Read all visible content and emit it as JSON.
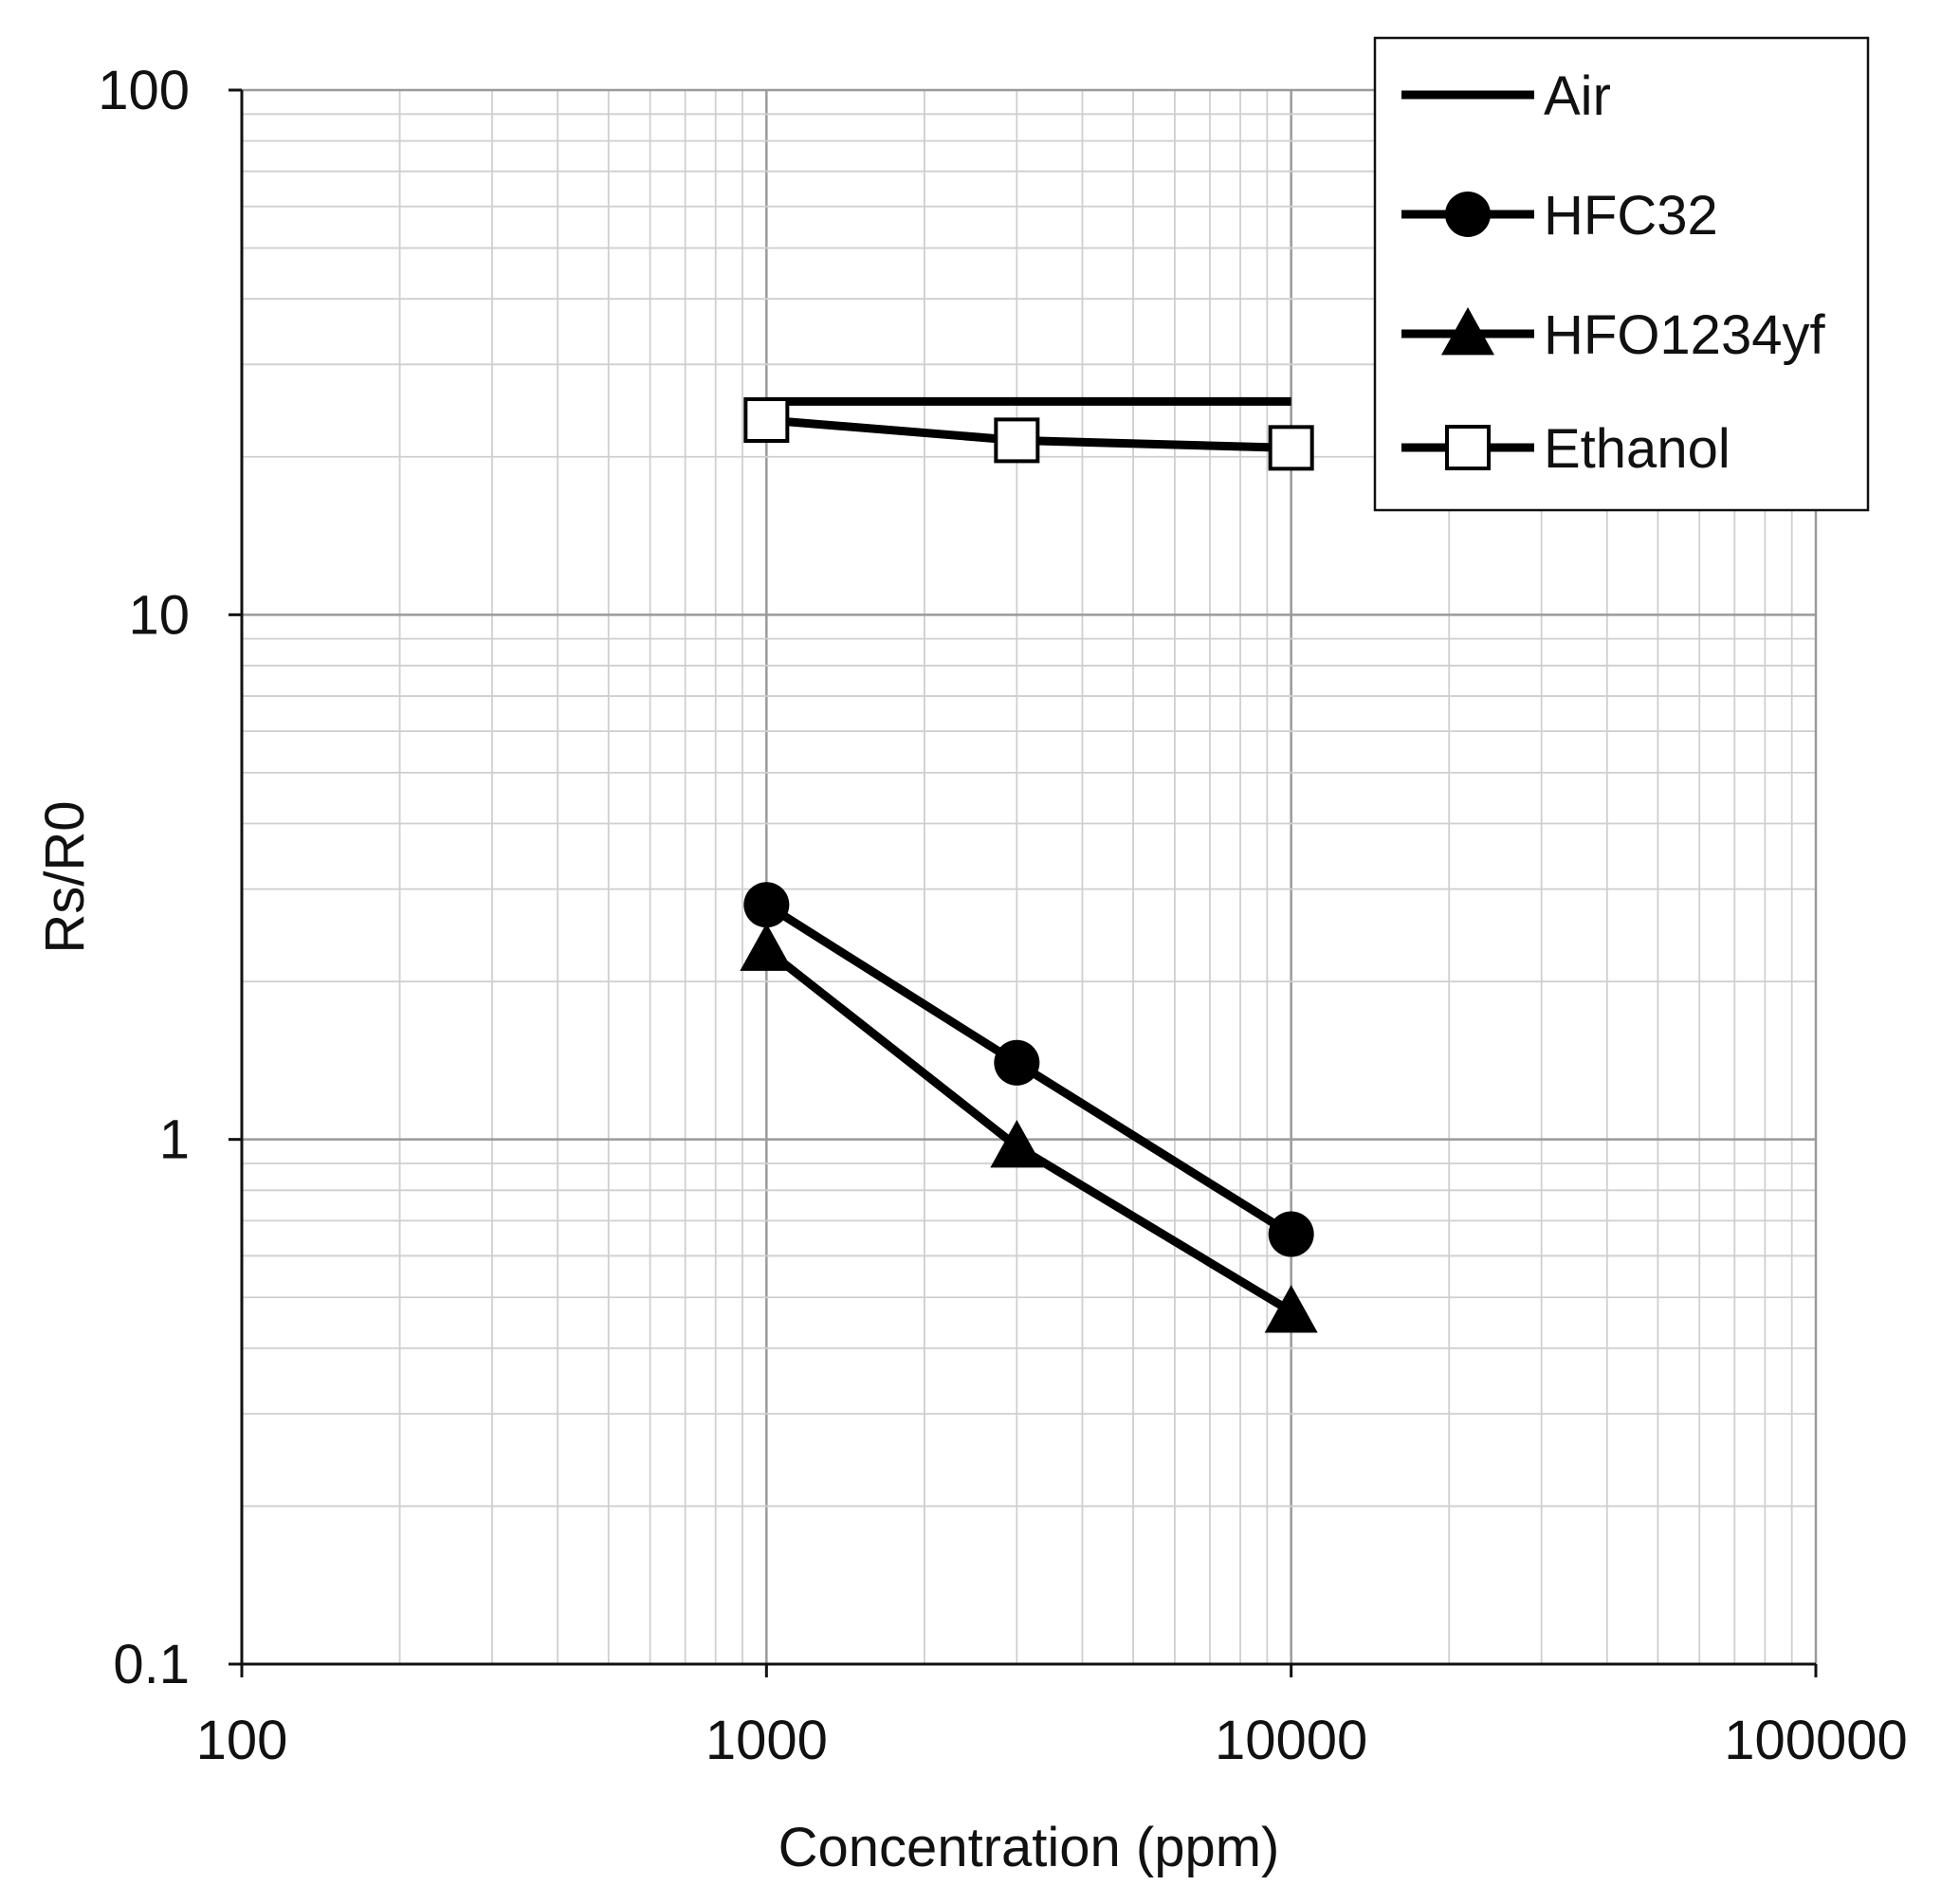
{
  "chart_data": {
    "type": "line",
    "title": "",
    "xlabel": "Concentration (ppm)",
    "ylabel": "Rs/R0",
    "xscale": "log",
    "yscale": "log",
    "xlim": [
      100,
      100000
    ],
    "ylim": [
      0.1,
      100
    ],
    "x_ticks": [
      "100",
      "1000",
      "10000",
      "100000"
    ],
    "y_ticks": [
      "0.1",
      "1",
      "10",
      "100"
    ],
    "grid": true,
    "legend_position": "top-right",
    "series": [
      {
        "name": "Air",
        "marker": "none",
        "x": [
          1000,
          10000
        ],
        "y": [
          25.5,
          25.5
        ]
      },
      {
        "name": "HFC32",
        "marker": "circle",
        "x": [
          1000,
          3000,
          10000
        ],
        "y": [
          2.8,
          1.4,
          0.66
        ]
      },
      {
        "name": "HFO1234yf",
        "marker": "triangle",
        "x": [
          1000,
          3000,
          10000
        ],
        "y": [
          2.3,
          0.97,
          0.47
        ]
      },
      {
        "name": "Ethanol",
        "marker": "square",
        "x": [
          1000,
          3000,
          10000
        ],
        "y": [
          23.5,
          21.5,
          20.8
        ]
      }
    ]
  }
}
